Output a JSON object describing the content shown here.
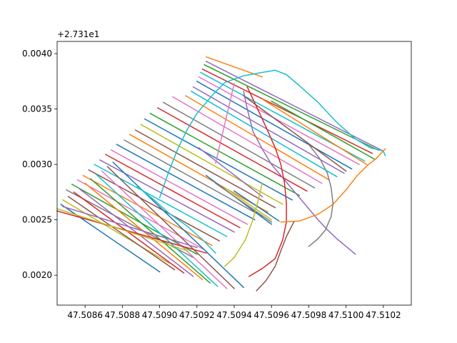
{
  "chart_data": {
    "type": "line",
    "title": "",
    "xlabel": "",
    "ylabel": "",
    "y_offset_label": "+2.731e1",
    "xlim": [
      47.50845,
      47.51035
    ],
    "ylim": [
      0.00173,
      0.00411
    ],
    "x_ticks": [
      47.5086,
      47.5088,
      47.509,
      47.5092,
      47.5094,
      47.5096,
      47.5098,
      47.51,
      47.5102
    ],
    "x_tick_labels": [
      "47.5086",
      "47.5088",
      "47.5090",
      "47.5092",
      "47.5094",
      "47.5096",
      "47.5098",
      "47.5100",
      "47.5102"
    ],
    "y_ticks": [
      0.002,
      0.0025,
      0.003,
      0.0035,
      0.004
    ],
    "y_tick_labels": [
      "0.0020",
      "0.0025",
      "0.0030",
      "0.0035",
      "0.0040"
    ],
    "grid": false,
    "legend": "none",
    "palette": [
      "#1f77b4",
      "#ff7f0e",
      "#2ca02c",
      "#d62728",
      "#9467bd",
      "#8c564b",
      "#e377c2",
      "#7f7f7f",
      "#bcbd22",
      "#17becf"
    ],
    "series": [
      {
        "x": [
          47.50925,
          47.50955
        ],
        "y": [
          0.00397,
          0.00379
        ],
        "color": "#ff7f0e"
      },
      {
        "x": [
          47.50925,
          47.5102
        ],
        "y": [
          0.00393,
          0.00312
        ],
        "color": "#9467bd"
      },
      {
        "x": [
          47.50924,
          47.51017
        ],
        "y": [
          0.0039,
          0.00313
        ],
        "color": "#2ca02c"
      },
      {
        "x": [
          47.50923,
          47.51014
        ],
        "y": [
          0.00386,
          0.0031
        ],
        "color": "#d62728"
      },
      {
        "x": [
          47.50922,
          47.5101
        ],
        "y": [
          0.00383,
          0.00303
        ],
        "color": "#17becf"
      },
      {
        "x": [
          47.50921,
          47.51007
        ],
        "y": [
          0.00379,
          0.003
        ],
        "color": "#e377c2"
      },
      {
        "x": [
          47.5092,
          47.51003
        ],
        "y": [
          0.00375,
          0.00296
        ],
        "color": "#1f77b4"
      },
      {
        "x": [
          47.50918,
          47.50999
        ],
        "y": [
          0.0037,
          0.00292
        ],
        "color": "#9467bd"
      },
      {
        "x": [
          47.50917,
          47.50995
        ],
        "y": [
          0.00366,
          0.00289
        ],
        "color": "#17becf"
      },
      {
        "x": [
          47.50914,
          47.50991
        ],
        "y": [
          0.00362,
          0.00286
        ],
        "color": "#ff7f0e"
      },
      {
        "x": [
          47.50907,
          47.50987
        ],
        "y": [
          0.00361,
          0.00283
        ],
        "color": "#e377c2"
      },
      {
        "x": [
          47.50902,
          47.50983
        ],
        "y": [
          0.00356,
          0.00279
        ],
        "color": "#7f7f7f"
      },
      {
        "x": [
          47.50899,
          47.50979
        ],
        "y": [
          0.00351,
          0.00276
        ],
        "color": "#d62728"
      },
      {
        "x": [
          47.50895,
          47.50975
        ],
        "y": [
          0.00346,
          0.00272
        ],
        "color": "#2ca02c"
      },
      {
        "x": [
          47.50892,
          47.50971
        ],
        "y": [
          0.00341,
          0.00268
        ],
        "color": "#1f77b4"
      },
      {
        "x": [
          47.5089,
          47.50966
        ],
        "y": [
          0.00336,
          0.00264
        ],
        "color": "#bcbd22"
      },
      {
        "x": [
          47.50887,
          47.50962
        ],
        "y": [
          0.00331,
          0.00261
        ],
        "color": "#8c564b"
      },
      {
        "x": [
          47.50884,
          47.50958
        ],
        "y": [
          0.00327,
          0.00257
        ],
        "color": "#ff7f0e"
      },
      {
        "x": [
          47.50881,
          47.50955
        ],
        "y": [
          0.00322,
          0.00253
        ],
        "color": "#7f7f7f"
      },
      {
        "x": [
          47.50877,
          47.50951
        ],
        "y": [
          0.00318,
          0.0025
        ],
        "color": "#1f77b4"
      },
      {
        "x": [
          47.50874,
          47.50947
        ],
        "y": [
          0.00313,
          0.00246
        ],
        "color": "#e377c2"
      },
      {
        "x": [
          47.50871,
          47.50943
        ],
        "y": [
          0.00309,
          0.00243
        ],
        "color": "#d62728"
      },
      {
        "x": [
          47.50868,
          47.5094
        ],
        "y": [
          0.00304,
          0.00239
        ],
        "color": "#9467bd"
      },
      {
        "x": [
          47.50865,
          47.50936
        ],
        "y": [
          0.003,
          0.00235
        ],
        "color": "#17becf"
      },
      {
        "x": [
          47.50862,
          47.50932
        ],
        "y": [
          0.00295,
          0.00231
        ],
        "color": "#8c564b"
      },
      {
        "x": [
          47.50859,
          47.50928
        ],
        "y": [
          0.0029,
          0.00227
        ],
        "color": "#ff7f0e"
      },
      {
        "x": [
          47.50856,
          47.50924
        ],
        "y": [
          0.00286,
          0.00223
        ],
        "color": "#e377c2"
      },
      {
        "x": [
          47.50853,
          47.5092
        ],
        "y": [
          0.00282,
          0.00219
        ],
        "color": "#2ca02c"
      },
      {
        "x": [
          47.5085,
          47.50918
        ],
        "y": [
          0.00277,
          0.00216
        ],
        "color": "#7f7f7f"
      },
      {
        "x": [
          47.50848,
          47.50905
        ],
        "y": [
          0.00268,
          0.00211
        ],
        "color": "#bcbd22"
      },
      {
        "x": [
          47.50847,
          47.509
        ],
        "y": [
          0.00264,
          0.00203
        ],
        "color": "#1f77b4"
      },
      {
        "x": [
          47.50851,
          47.50908
        ],
        "y": [
          0.00271,
          0.00205
        ],
        "color": "#8c564b"
      },
      {
        "x": [
          47.50854,
          47.50913
        ],
        "y": [
          0.00275,
          0.00202
        ],
        "color": "#d62728"
      },
      {
        "x": [
          47.50857,
          47.50918
        ],
        "y": [
          0.00278,
          0.00199
        ],
        "color": "#9467bd"
      },
      {
        "x": [
          47.5086,
          47.50923
        ],
        "y": [
          0.00283,
          0.00196
        ],
        "color": "#ff7f0e"
      },
      {
        "x": [
          47.50863,
          47.50927
        ],
        "y": [
          0.00287,
          0.00193
        ],
        "color": "#2ca02c"
      },
      {
        "x": [
          47.50866,
          47.50931
        ],
        "y": [
          0.00291,
          0.0019
        ],
        "color": "#17becf"
      },
      {
        "x": [
          47.50869,
          47.50936
        ],
        "y": [
          0.00294,
          0.00188
        ],
        "color": "#e377c2"
      },
      {
        "x": [
          47.50872,
          47.5094
        ],
        "y": [
          0.00298,
          0.00188
        ],
        "color": "#8c564b"
      },
      {
        "x": [
          47.50875,
          47.50945
        ],
        "y": [
          0.00302,
          0.00189
        ],
        "color": "#1f77b4"
      },
      {
        "x": [
          47.50845,
          47.50925
        ],
        "y": [
          0.00258,
          0.0022
        ],
        "color": "#d62728"
      },
      {
        "x": [
          47.50845,
          47.50915
        ],
        "y": [
          0.0026,
          0.00222
        ],
        "color": "#bcbd22"
      },
      {
        "x": [
          47.50848,
          47.5092
        ],
        "y": [
          0.00262,
          0.00225
        ],
        "color": "#9467bd"
      },
      {
        "x": [
          47.50921,
          47.50955
        ],
        "y": [
          0.00315,
          0.00271
        ],
        "color": "#9467bd"
      },
      {
        "x": [
          47.50945,
          47.51
        ],
        "y": [
          0.00362,
          0.00294
        ],
        "color": "#8c564b"
      },
      {
        "x": [
          47.50955,
          47.51011
        ],
        "y": [
          0.00359,
          0.003
        ],
        "color": "#ff7f0e"
      },
      {
        "x": [
          47.5096,
          47.51015
        ],
        "y": [
          0.00357,
          0.00305
        ],
        "color": "#2ca02c"
      },
      {
        "x": [
          47.5094,
          47.5093
        ],
        "y": [
          0.00373,
          0.00301
        ],
        "color": "#e377c2"
      },
      {
        "x": [
          47.50925,
          47.5096
        ],
        "y": [
          0.0029,
          0.00246
        ],
        "color": "#1f77b4"
      },
      {
        "x": [
          47.5093,
          47.5096
        ],
        "y": [
          0.00283,
          0.00248
        ],
        "color": "#7f7f7f"
      },
      {
        "x": [
          47.50935,
          47.5096
        ],
        "y": [
          0.00279,
          0.0025
        ],
        "color": "#bcbd22"
      },
      {
        "x": [
          47.5094,
          47.50964
        ],
        "y": [
          0.00276,
          0.00249
        ],
        "color": "#1f77b4"
      },
      {
        "x": [
          47.509,
          47.50905,
          47.5091,
          47.50915,
          47.5092,
          47.50928,
          47.50935,
          47.50945,
          47.50955,
          47.50962,
          47.50968,
          47.50975,
          47.50985,
          47.50995,
          47.51005,
          47.51013,
          47.51018,
          47.5102,
          47.51021
        ],
        "y": [
          0.0027,
          0.00294,
          0.00315,
          0.00332,
          0.00346,
          0.00362,
          0.00374,
          0.0038,
          0.00383,
          0.00385,
          0.00381,
          0.00371,
          0.00356,
          0.00338,
          0.00323,
          0.00315,
          0.00313,
          0.00312,
          0.00308
        ],
        "color": "#17becf"
      },
      {
        "x": [
          47.50945,
          47.50947,
          47.5095,
          47.50955,
          47.5096,
          47.50965,
          47.5097,
          47.50975,
          47.5098,
          47.50985,
          47.5099,
          47.50995,
          47.51,
          47.51005
        ],
        "y": [
          0.00366,
          0.0035,
          0.0033,
          0.00314,
          0.003,
          0.0029,
          0.0028,
          0.0027,
          0.0026,
          0.0025,
          0.00241,
          0.00233,
          0.00226,
          0.00219
        ],
        "color": "#9467bd"
      },
      {
        "x": [
          47.50947,
          47.50952,
          47.50957,
          47.50962,
          47.50965,
          47.50967,
          47.50968,
          47.50968,
          47.50966,
          47.50962,
          47.50955,
          47.50948
        ],
        "y": [
          0.0037,
          0.00352,
          0.00334,
          0.00315,
          0.003,
          0.00283,
          0.00265,
          0.00248,
          0.00232,
          0.00215,
          0.00206,
          0.00199
        ],
        "color": "#d62728"
      },
      {
        "x": [
          47.50965,
          47.50975,
          47.50985,
          47.50993,
          47.51,
          47.51006,
          47.51012,
          47.51016,
          47.51021
        ],
        "y": [
          0.00248,
          0.00249,
          0.00255,
          0.00264,
          0.00277,
          0.0029,
          0.003,
          0.00305,
          0.00314
        ],
        "color": "#ff7f0e"
      },
      {
        "x": [
          47.5098,
          47.50986,
          47.5099,
          47.50992,
          47.50993,
          47.50992,
          47.50989,
          47.50985,
          47.5098
        ],
        "y": [
          0.00318,
          0.00305,
          0.00292,
          0.00279,
          0.00265,
          0.00253,
          0.00241,
          0.00233,
          0.00226
        ],
        "color": "#7f7f7f"
      },
      {
        "x": [
          47.50952,
          47.50957,
          47.50962,
          47.50965,
          47.50968,
          47.50972
        ],
        "y": [
          0.00186,
          0.00195,
          0.00208,
          0.00222,
          0.00235,
          0.00248
        ],
        "color": "#8c564b"
      },
      {
        "x": [
          47.50888,
          47.50897,
          47.50905,
          47.50915,
          47.50923,
          47.5093
        ],
        "y": [
          0.0028,
          0.00268,
          0.00256,
          0.00244,
          0.00232,
          0.0022
        ],
        "color": "#17becf"
      },
      {
        "x": [
          47.50935,
          47.5094,
          47.50946,
          47.5095,
          47.50953,
          47.50955
        ],
        "y": [
          0.00208,
          0.00216,
          0.00232,
          0.0025,
          0.00268,
          0.00283
        ],
        "color": "#bcbd22"
      }
    ]
  }
}
